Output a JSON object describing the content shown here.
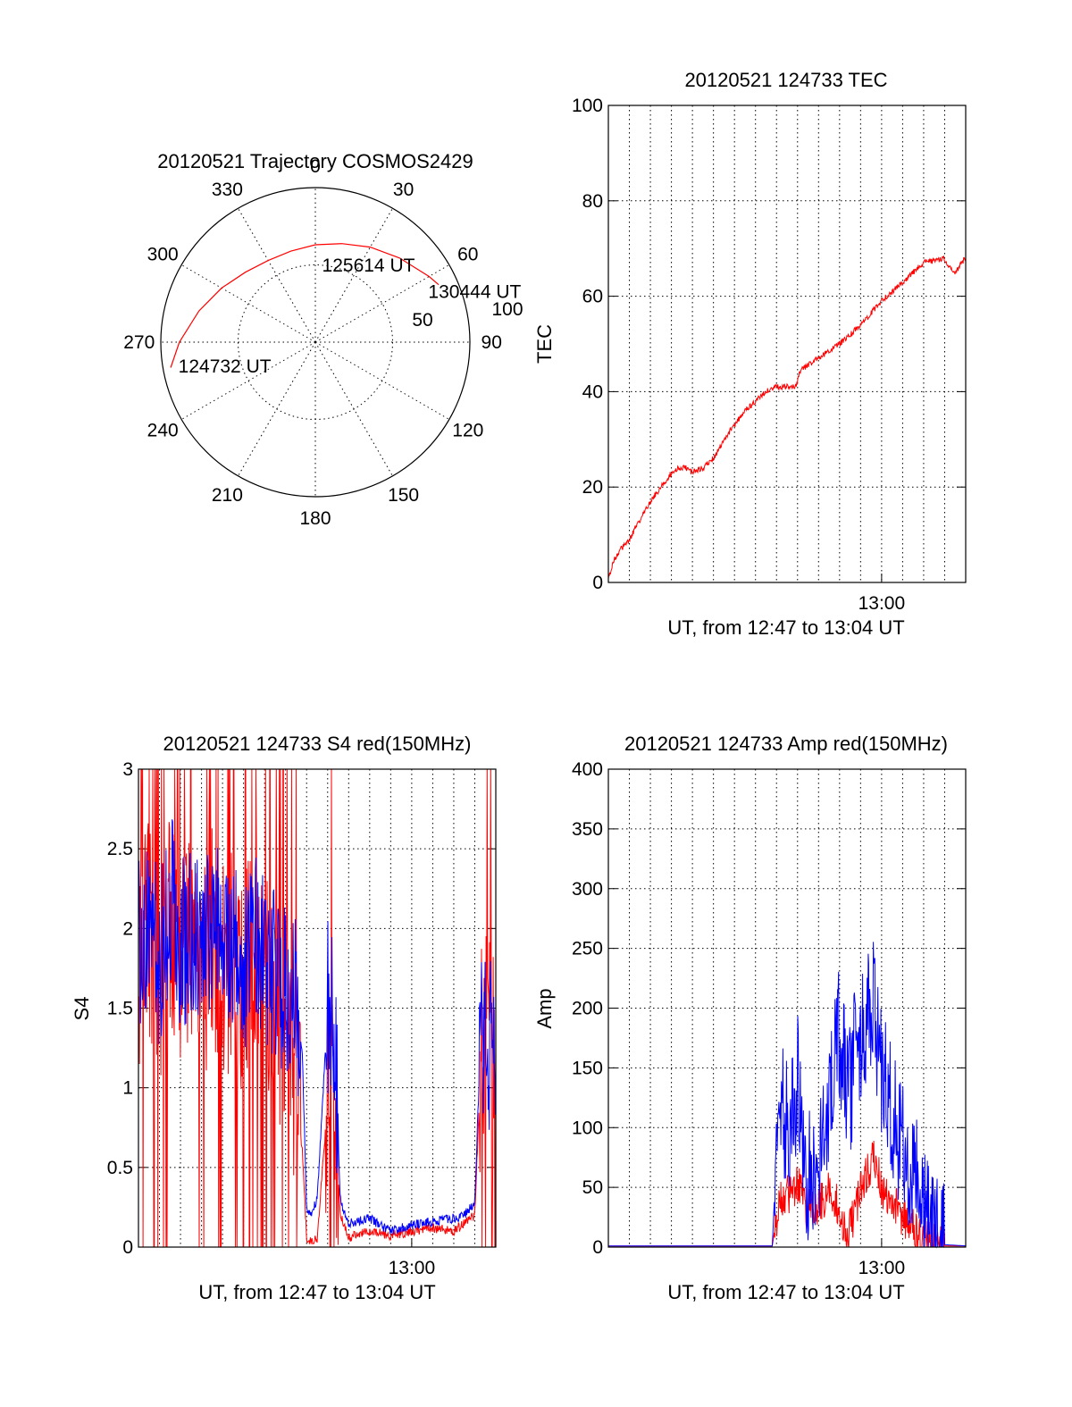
{
  "chart_data": [
    {
      "id": "trajectory",
      "type": "polar",
      "title": "20120521 Trajectory COSMOS2429",
      "angle_labels": [
        "0",
        "30",
        "60",
        "90",
        "120",
        "150",
        "180",
        "210",
        "240",
        "270",
        "300",
        "330"
      ],
      "radius_labels": [
        "50",
        "100"
      ],
      "color": "#ff0000",
      "annotations": [
        {
          "text": "130444 UT",
          "az": 66,
          "r": 80
        },
        {
          "text": "125614 UT",
          "az": 5,
          "r": 50
        },
        {
          "text": "124732 UT",
          "az": 260,
          "r": 90
        }
      ],
      "track": [
        {
          "az": 260,
          "r": 95
        },
        {
          "az": 270,
          "r": 88
        },
        {
          "az": 285,
          "r": 78
        },
        {
          "az": 300,
          "r": 70
        },
        {
          "az": 315,
          "r": 64
        },
        {
          "az": 330,
          "r": 61
        },
        {
          "az": 345,
          "r": 61
        },
        {
          "az": 0,
          "r": 63
        },
        {
          "az": 15,
          "r": 66
        },
        {
          "az": 30,
          "r": 71
        },
        {
          "az": 45,
          "r": 77
        },
        {
          "az": 60,
          "r": 85
        },
        {
          "az": 65,
          "r": 88
        }
      ]
    },
    {
      "id": "tec",
      "type": "line",
      "title": "20120521 124733 TEC",
      "xlabel": "UT, from 12:47 to 13:04 UT",
      "ylabel": "TEC",
      "xlim": [
        0,
        17
      ],
      "ylim": [
        0,
        100
      ],
      "yticks": [
        "0",
        "20",
        "40",
        "60",
        "80",
        "100"
      ],
      "xtick_label": "13:00",
      "xtick_at": 13,
      "color": "#ff0000",
      "series": [
        {
          "x": [
            0,
            0.3,
            0.6,
            1,
            1.5,
            2,
            2.5,
            3,
            3.3,
            3.7,
            4,
            4.5,
            5,
            5.5,
            6,
            6.5,
            7,
            7.5,
            8,
            8.5,
            8.7,
            8.9,
            9.1,
            9.3,
            10,
            11,
            12,
            13,
            14,
            15,
            16,
            16.2,
            16.5,
            16.8,
            17
          ],
          "y": [
            1,
            5,
            7,
            9,
            13,
            17,
            20,
            23,
            24,
            24,
            23,
            24,
            26,
            30,
            33,
            36,
            38,
            40,
            41,
            41,
            41,
            41,
            44,
            45,
            47,
            50,
            54,
            59,
            63,
            67,
            68,
            66,
            65,
            67,
            68
          ]
        }
      ]
    },
    {
      "id": "s4",
      "type": "line",
      "title": "20120521 124733 S4 red(150MHz)",
      "xlabel": "UT, from 12:47 to 13:04 UT",
      "ylabel": "S4",
      "xlim": [
        0,
        17
      ],
      "ylim": [
        0,
        3
      ],
      "yticks": [
        "0",
        "0.5",
        "1",
        "1.5",
        "2",
        "2.5",
        "3"
      ],
      "xtick_label": "13:00",
      "xtick_at": 13,
      "series": [
        {
          "color": "#ff0000",
          "x": [
            0,
            0.5,
            1,
            1.5,
            2,
            2.5,
            3,
            3.5,
            4,
            4.5,
            5,
            5.5,
            6,
            6.5,
            7,
            7.5,
            7.8,
            8,
            8.2,
            8.5,
            9,
            9.3,
            9.6,
            10,
            11,
            12,
            13,
            14,
            15,
            15.5,
            16,
            16.3,
            16.6,
            17
          ],
          "y": [
            1.8,
            2.0,
            1.7,
            2.1,
            1.8,
            1.9,
            1.6,
            2.0,
            1.7,
            1.8,
            1.6,
            1.9,
            1.7,
            1.5,
            1.3,
            1.0,
            0.6,
            0.05,
            0.04,
            0.05,
            0.9,
            1.0,
            0.2,
            0.06,
            0.1,
            0.07,
            0.1,
            0.12,
            0.1,
            0.15,
            0.2,
            1.2,
            1.4,
            1.1
          ]
        },
        {
          "color": "#0000ff",
          "x": [
            0,
            0.5,
            1,
            1.5,
            2,
            2.5,
            3,
            3.5,
            4,
            4.5,
            5,
            5.5,
            6,
            6.5,
            7,
            7.5,
            7.8,
            8,
            8.2,
            8.5,
            9,
            9.3,
            9.6,
            10,
            11,
            12,
            13,
            14,
            15,
            15.5,
            16,
            16.3,
            16.6,
            17
          ],
          "y": [
            1.9,
            2.1,
            1.8,
            2.2,
            1.9,
            2.0,
            1.8,
            2.1,
            1.9,
            1.9,
            1.7,
            2.0,
            1.8,
            1.7,
            1.6,
            1.5,
            1.2,
            0.25,
            0.2,
            0.3,
            1.5,
            1.4,
            0.3,
            0.15,
            0.18,
            0.1,
            0.14,
            0.16,
            0.18,
            0.2,
            0.28,
            1.4,
            1.3,
            1.2
          ]
        }
      ]
    },
    {
      "id": "amp",
      "type": "line",
      "title": "20120521 124733 Amp red(150MHz)",
      "xlabel": "UT, from 12:47 to 13:04 UT",
      "ylabel": "Amp",
      "xlim": [
        0,
        17
      ],
      "ylim": [
        0,
        400
      ],
      "yticks": [
        "0",
        "50",
        "100",
        "150",
        "200",
        "250",
        "300",
        "350",
        "400"
      ],
      "xtick_label": "13:00",
      "xtick_at": 13,
      "series": [
        {
          "color": "#ff0000",
          "x": [
            0,
            2,
            4,
            6,
            7.8,
            8.0,
            8.2,
            8.6,
            9.0,
            9.4,
            10,
            10.6,
            11,
            11.4,
            11.8,
            12.2,
            12.6,
            13,
            13.5,
            14,
            14.5,
            15,
            15.5,
            16,
            17
          ],
          "y": [
            1,
            1,
            1,
            1,
            1,
            25,
            40,
            45,
            55,
            30,
            35,
            50,
            30,
            10,
            35,
            55,
            75,
            50,
            40,
            25,
            15,
            8,
            3,
            1,
            1
          ]
        },
        {
          "color": "#0000ff",
          "x": [
            0,
            2,
            4,
            6,
            7.8,
            8.0,
            8.2,
            8.6,
            9.0,
            9.4,
            10,
            10.6,
            11,
            11.4,
            11.8,
            12.2,
            12.6,
            13,
            13.5,
            14,
            14.5,
            15,
            15.5,
            16,
            17
          ],
          "y": [
            1,
            1,
            1,
            1,
            1,
            80,
            120,
            100,
            140,
            60,
            70,
            140,
            180,
            120,
            170,
            190,
            200,
            150,
            110,
            85,
            60,
            35,
            15,
            2,
            1
          ]
        }
      ]
    }
  ]
}
